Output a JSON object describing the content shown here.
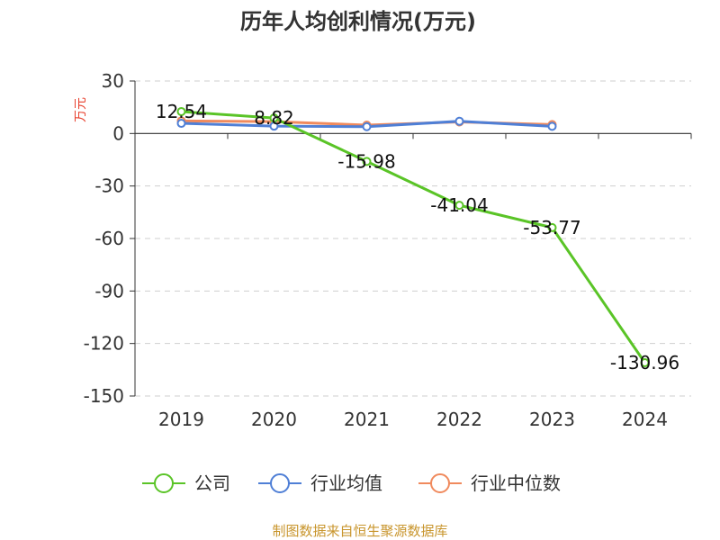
{
  "chart_data": {
    "type": "line",
    "title": "历年人均创利情况(万元)",
    "ylabel": "万元",
    "xlabel": "",
    "categories": [
      "2019",
      "2020",
      "2021",
      "2022",
      "2023",
      "2024"
    ],
    "ylim": [
      -150,
      30
    ],
    "yticks": [
      30,
      0,
      -30,
      -60,
      -90,
      -120,
      -150
    ],
    "grid": true,
    "legend_position": "bottom",
    "series": [
      {
        "name": "公司",
        "color": "#5ac427",
        "values": [
          12.54,
          8.82,
          -15.98,
          -41.04,
          -53.77,
          -130.96
        ],
        "labels": [
          "12.54",
          "8.82",
          "-15.98",
          "-41.04",
          "-53.77",
          "-130.96"
        ]
      },
      {
        "name": "行业均值",
        "color": "#4f7fd6",
        "values": [
          5.8,
          4.2,
          3.9,
          7.0,
          4.1,
          null
        ]
      },
      {
        "name": "行业中位数",
        "color": "#f08a5d",
        "values": [
          7.2,
          6.8,
          4.8,
          6.6,
          5.1,
          null
        ]
      }
    ]
  },
  "source": "制图数据来自恒生聚源数据库"
}
